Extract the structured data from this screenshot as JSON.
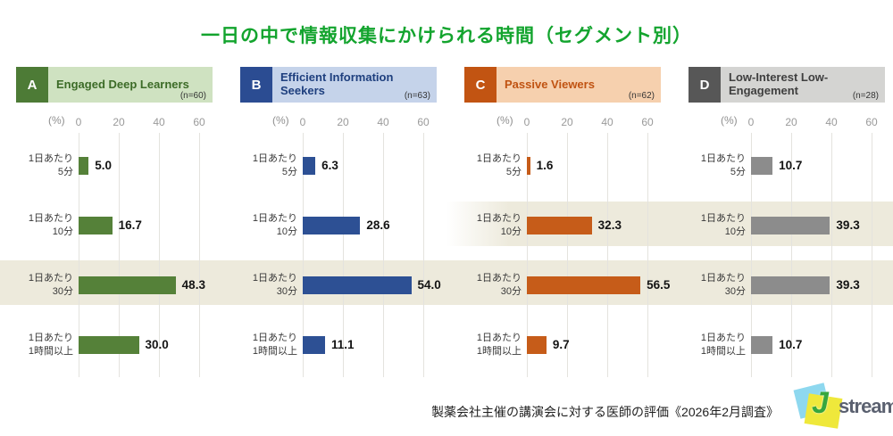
{
  "title": "一日の中で情報収集にかけられる時間（セグメント別）",
  "title_color": "#13a42e",
  "footer": {
    "source": "製薬会社主催の講演会に対する医師の評価《2026年2月調査》",
    "logo_j": "J",
    "logo_text": "stream",
    "logo_colors": {
      "cyan": "#8ed8ef",
      "yellow": "#efe83b",
      "green": "#37a73e",
      "text": "#5b6170"
    }
  },
  "chart_data": {
    "type": "bar",
    "orientation": "horizontal",
    "title": "一日の中で情報収集にかけられる時間（セグメント別）",
    "categories": [
      "1日あたり\n5分",
      "1日あたり\n10分",
      "1日あたり\n30分",
      "1日あたり\n1時間以上"
    ],
    "axis": {
      "unit": "(%)",
      "ticks": [
        "0",
        "20",
        "40",
        "60"
      ],
      "xlim": [
        0,
        66
      ],
      "grid": true
    },
    "series": [
      {
        "letter": "A",
        "name": "Engaged Deep Learners",
        "n": "(n=60)",
        "values": [
          5.0,
          16.7,
          48.3,
          30.0
        ],
        "labels": [
          "5.0",
          "16.7",
          "48.3",
          "30.0"
        ],
        "colors": {
          "bar": "#558139",
          "tab": "#4d7b36",
          "header_bg": "#cfe2c1",
          "title": "#3c6b27"
        }
      },
      {
        "letter": "B",
        "name": "Efficient Information Seekers",
        "n": "(n=63)",
        "values": [
          6.3,
          28.6,
          54.0,
          11.1
        ],
        "labels": [
          "6.3",
          "28.6",
          "54.0",
          "11.1"
        ],
        "colors": {
          "bar": "#2d5094",
          "tab": "#2b4c92",
          "header_bg": "#c5d3ea",
          "title": "#1e3f7e"
        }
      },
      {
        "letter": "C",
        "name": "Passive Viewers",
        "n": "(n=62)",
        "values": [
          1.6,
          32.3,
          56.5,
          9.7
        ],
        "labels": [
          "1.6",
          "32.3",
          "56.5",
          "9.7"
        ],
        "colors": {
          "bar": "#c65c19",
          "tab": "#c25412",
          "header_bg": "#f6d0ae",
          "title": "#c05312"
        }
      },
      {
        "letter": "D",
        "name": "Low-Interest Low-Engagement",
        "n": "(n=28)",
        "values": [
          10.7,
          39.3,
          39.3,
          10.7
        ],
        "labels": [
          "10.7",
          "39.3",
          "39.3",
          "10.7"
        ],
        "colors": {
          "bar": "#8c8c8c",
          "tab": "#575757",
          "header_bg": "#d4d4d2",
          "title": "#3f3f3f"
        }
      }
    ],
    "highlight_color": "#edeadc",
    "highlights": [
      {
        "category": "1日あたり30分",
        "panels": [
          "A",
          "B",
          "C",
          "D"
        ]
      },
      {
        "category": "1日あたり10分",
        "panels": [
          "C",
          "D"
        ]
      }
    ]
  }
}
